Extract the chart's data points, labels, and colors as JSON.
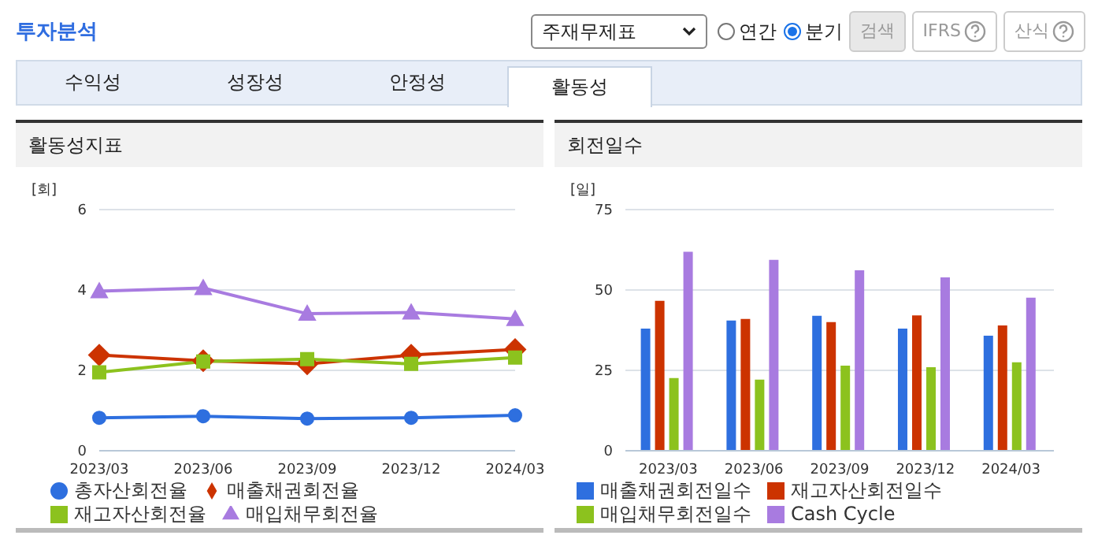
{
  "chart_data": [
    {
      "type": "line",
      "title": "활동성지표",
      "ylabel": "[회]",
      "categories": [
        "2023/03",
        "2023/06",
        "2023/09",
        "2023/12",
        "2024/03"
      ],
      "ylim": [
        0,
        6
      ],
      "yticks": [
        0,
        2,
        4,
        6
      ],
      "grid": "y",
      "legend": "bottom",
      "line_style": "solid",
      "annotations": [
        "투자분석",
        "주재무제표",
        "연간",
        "분기",
        "검색",
        "IFRS",
        "산식",
        "수익성",
        "성장성",
        "안정성",
        "활동성"
      ],
      "series": [
        {
          "name": "총자산회전율",
          "color": "#2e6fdf",
          "marker": "circle",
          "values": [
            0.82,
            0.86,
            0.8,
            0.82,
            0.88
          ]
        },
        {
          "name": "매출채권회전율",
          "color": "#cc3300",
          "marker": "diamond",
          "values": [
            2.38,
            2.24,
            2.16,
            2.38,
            2.52
          ]
        },
        {
          "name": "재고자산회전율",
          "color": "#8cc21e",
          "marker": "square",
          "values": [
            1.95,
            2.22,
            2.28,
            2.16,
            2.32
          ]
        },
        {
          "name": "매입채무회전율",
          "color": "#a87be0",
          "marker": "triangle",
          "values": [
            3.97,
            4.05,
            3.41,
            3.44,
            3.28
          ]
        }
      ]
    },
    {
      "type": "bar",
      "title": "회전일수",
      "ylabel": "[일]",
      "categories": [
        "2023/03",
        "2023/06",
        "2023/09",
        "2023/12",
        "2024/03"
      ],
      "ylim": [
        0,
        75
      ],
      "yticks": [
        0,
        25,
        50,
        75
      ],
      "grid": "y",
      "legend": "bottom",
      "series": [
        {
          "name": "매출채권회전일수",
          "color": "#2e6fdf",
          "values": [
            38.0,
            40.5,
            42.0,
            38.0,
            35.8
          ]
        },
        {
          "name": "재고자산회전일수",
          "color": "#cc3300",
          "values": [
            46.6,
            41.0,
            40.0,
            42.1,
            39.0
          ]
        },
        {
          "name": "매입채무회전일수",
          "color": "#8cc21e",
          "values": [
            22.6,
            22.1,
            26.5,
            26.0,
            27.5
          ]
        },
        {
          "name": "Cash Cycle",
          "color": "#a87be0",
          "values": [
            61.9,
            59.4,
            56.1,
            53.9,
            47.6
          ]
        }
      ]
    }
  ]
}
